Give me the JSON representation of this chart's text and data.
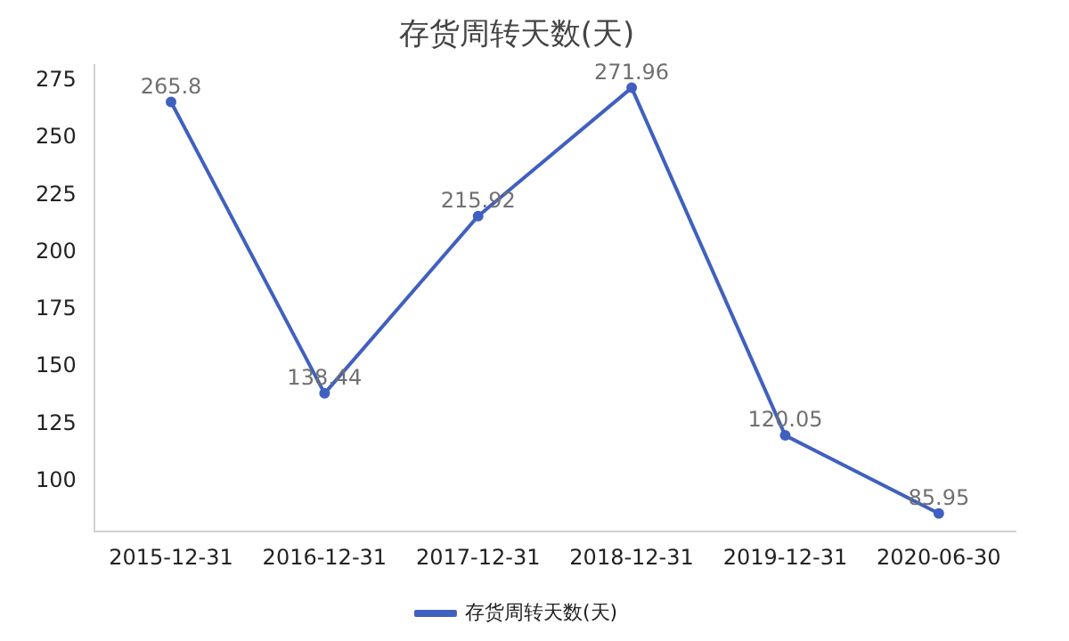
{
  "chart_data": {
    "type": "line",
    "title": "存货周转天数(天)",
    "categories": [
      "2015-12-31",
      "2016-12-31",
      "2017-12-31",
      "2018-12-31",
      "2019-12-31",
      "2020-06-30"
    ],
    "series": [
      {
        "name": "存货周转天数(天)",
        "color": "#4060c0",
        "values": [
          265.8,
          138.44,
          215.92,
          271.96,
          120.05,
          85.95
        ]
      }
    ],
    "ylim": [
      78,
      282
    ],
    "yticks": [
      100,
      125,
      150,
      175,
      200,
      225,
      250,
      275
    ],
    "grid": false,
    "legend": "bottom",
    "marker": "circle",
    "line_style": "solid",
    "data_labels": true
  }
}
